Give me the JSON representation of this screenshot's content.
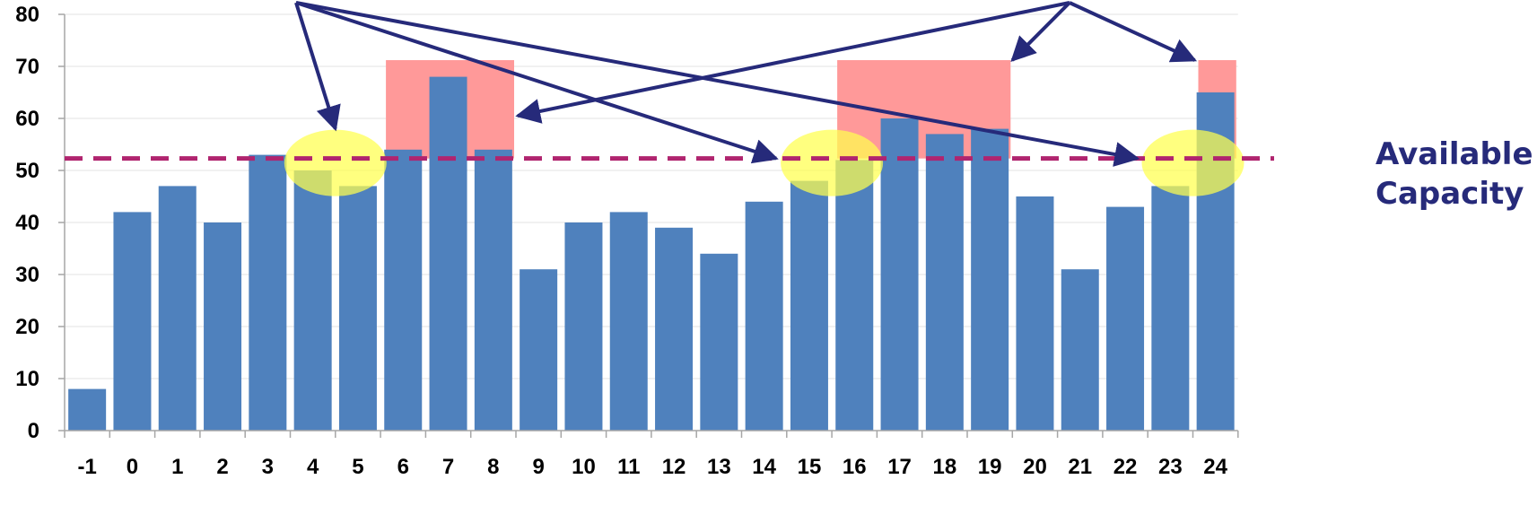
{
  "chart_data": {
    "type": "bar",
    "categories": [
      "-1",
      "0",
      "1",
      "2",
      "3",
      "4",
      "5",
      "6",
      "7",
      "8",
      "9",
      "10",
      "11",
      "12",
      "13",
      "14",
      "15",
      "16",
      "17",
      "18",
      "19",
      "20",
      "21",
      "22",
      "23",
      "24"
    ],
    "values": [
      8,
      42,
      47,
      40,
      53,
      50,
      47,
      54,
      68,
      54,
      31,
      40,
      42,
      39,
      34,
      44,
      48,
      52,
      60,
      57,
      58,
      45,
      31,
      43,
      47,
      65
    ],
    "ylim": [
      0,
      80
    ],
    "yticks": [
      0,
      10,
      20,
      30,
      40,
      50,
      60,
      70,
      80
    ],
    "grid": true,
    "legend": "none",
    "reference_line": {
      "value": 52.3,
      "label_line1": "Available",
      "label_line2": "Capacity",
      "color": "#b0246f"
    },
    "over_capacity_regions": [
      {
        "from": "6",
        "to": "8",
        "top": 71.2
      },
      {
        "from": "16",
        "to": "19",
        "top": 71.2
      },
      {
        "from": "24",
        "to": "24",
        "top": 71.2
      }
    ],
    "slack_highlights": [
      "4",
      "15",
      "23"
    ],
    "colors": {
      "bar": "#4f81bd",
      "over_region": "#ff9999",
      "highlight": "#ffff4d",
      "arrow": "#262a7a"
    }
  }
}
